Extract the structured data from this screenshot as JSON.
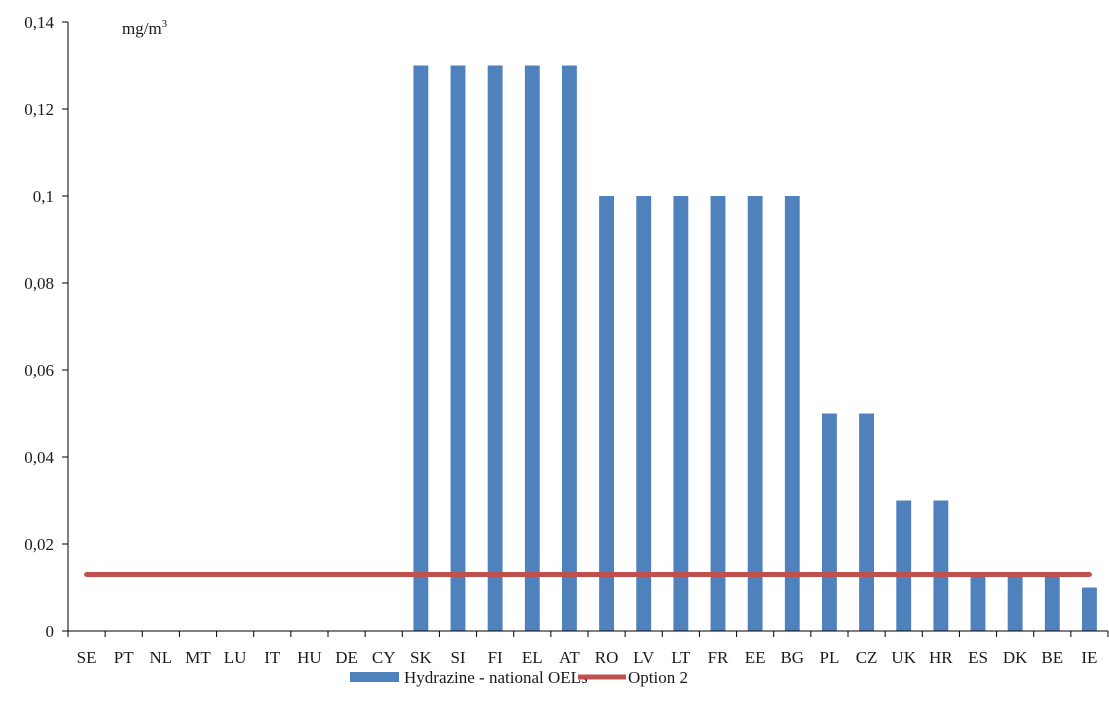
{
  "chart_data": {
    "type": "bar",
    "title": "",
    "xlabel": "",
    "ylabel": "",
    "unit": {
      "base": "mg/m",
      "superscript": "3"
    },
    "categories": [
      "SE",
      "PT",
      "NL",
      "MT",
      "LU",
      "IT",
      "HU",
      "DE",
      "CY",
      "SK",
      "SI",
      "FI",
      "EL",
      "AT",
      "RO",
      "LV",
      "LT",
      "FR",
      "EE",
      "BG",
      "PL",
      "CZ",
      "UK",
      "HR",
      "ES",
      "DK",
      "BE",
      "IE"
    ],
    "series": [
      {
        "name": "Hydrazine - national OELs",
        "kind": "bar",
        "color": "#4f81bd",
        "values": [
          null,
          null,
          null,
          null,
          null,
          null,
          null,
          null,
          null,
          0.13,
          0.13,
          0.13,
          0.13,
          0.13,
          0.1,
          0.1,
          0.1,
          0.1,
          0.1,
          0.1,
          0.05,
          0.05,
          0.03,
          0.03,
          0.013,
          0.013,
          0.013,
          0.01
        ]
      },
      {
        "name": "Option 2",
        "kind": "line",
        "color": "#c0504d",
        "values": [
          0.013,
          0.013,
          0.013,
          0.013,
          0.013,
          0.013,
          0.013,
          0.013,
          0.013,
          0.013,
          0.013,
          0.013,
          0.013,
          0.013,
          0.013,
          0.013,
          0.013,
          0.013,
          0.013,
          0.013,
          0.013,
          0.013,
          0.013,
          0.013,
          0.013,
          0.013,
          0.013,
          0.013
        ]
      }
    ],
    "ylim": [
      0,
      0.14
    ],
    "yticks": [
      0,
      0.02,
      0.04,
      0.06,
      0.08,
      0.1,
      0.12,
      0.14
    ],
    "ytick_labels": [
      "0",
      "0,02",
      "0,04",
      "0,06",
      "0,08",
      "0,1",
      "0,12",
      "0,14"
    ],
    "grid": false,
    "legend_position": "bottom-center"
  }
}
